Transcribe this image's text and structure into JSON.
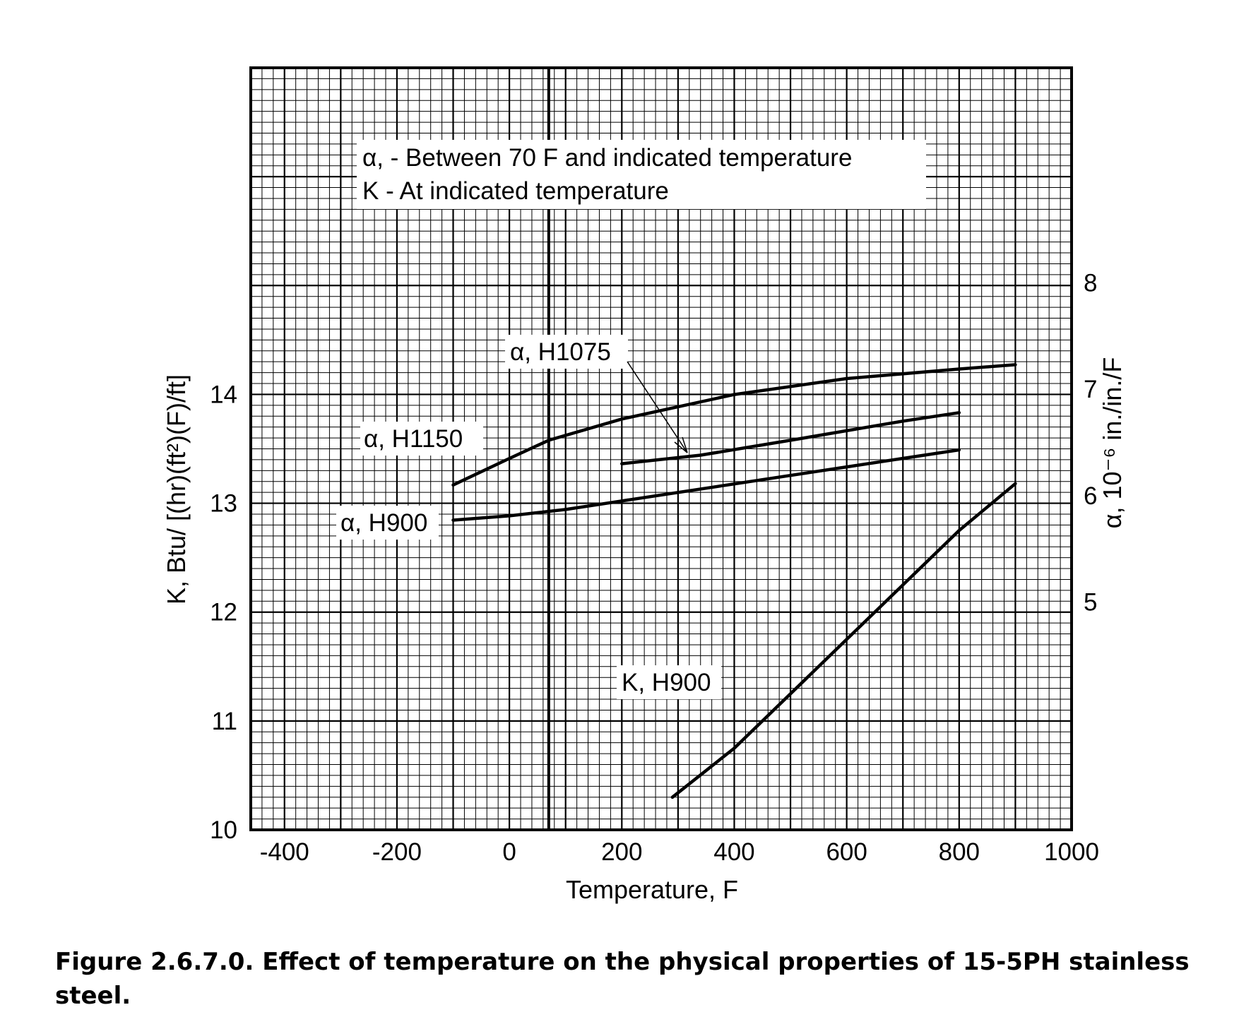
{
  "chart_data": {
    "type": "line",
    "title": "",
    "xlabel": "Temperature, F",
    "ylabel_left": "K, Btu/ [(hr)(ft²)(F)/ft]",
    "ylabel_right": "α, 10⁻⁶ in./in./F",
    "xlim": [
      -460,
      1000
    ],
    "ylim_left": [
      10,
      17
    ],
    "ylim_right": [
      2.86,
      10.02
    ],
    "x_ticks": [
      "-400",
      "-200",
      "0",
      "200",
      "400",
      "600",
      "800",
      "1000"
    ],
    "y_left_ticks": [
      "10",
      "11",
      "12",
      "13",
      "14"
    ],
    "y_right_ticks": [
      "5",
      "6",
      "7",
      "8"
    ],
    "grid": true,
    "legend_notes": [
      "α, - Between 70 F and indicated temperature",
      "K - At indicated temperature"
    ],
    "series": [
      {
        "name": "α, H1150",
        "axis": "right",
        "x": [
          -100,
          0,
          70,
          200,
          400,
          600,
          800,
          900
        ],
        "y": [
          6.1,
          6.35,
          6.52,
          6.72,
          6.95,
          7.1,
          7.19,
          7.23
        ]
      },
      {
        "name": "α, H1075",
        "axis": "right",
        "x": [
          200,
          340,
          500,
          700,
          800
        ],
        "y": [
          6.3,
          6.38,
          6.52,
          6.7,
          6.78
        ]
      },
      {
        "name": "α, H900",
        "axis": "right",
        "x": [
          -100,
          0,
          100,
          200,
          400,
          600,
          800
        ],
        "y": [
          5.77,
          5.81,
          5.87,
          5.95,
          6.11,
          6.27,
          6.43
        ]
      },
      {
        "name": "K, H900",
        "axis": "left",
        "x": [
          290,
          400,
          600,
          800,
          900
        ],
        "y": [
          10.3,
          10.75,
          11.75,
          12.75,
          13.18
        ]
      }
    ]
  },
  "caption": "Figure 2.6.7.0.  Effect of temperature on the physical properties of 15-5PH stainless steel."
}
